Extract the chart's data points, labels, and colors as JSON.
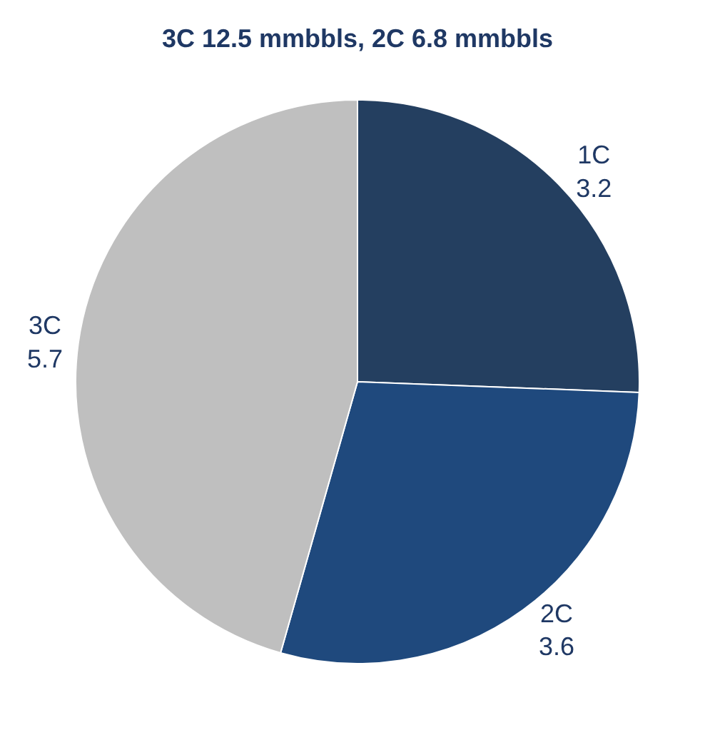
{
  "chart_data": {
    "type": "pie",
    "title": "3C 12.5 mmbbls, 2C 6.8 mmbbls",
    "categories": [
      "1C",
      "2C",
      "3C"
    ],
    "values": [
      3.2,
      3.6,
      5.7
    ],
    "colors": [
      "#243f60",
      "#1f497d",
      "#bfbfbf"
    ],
    "data_labels": true,
    "legend": false
  }
}
